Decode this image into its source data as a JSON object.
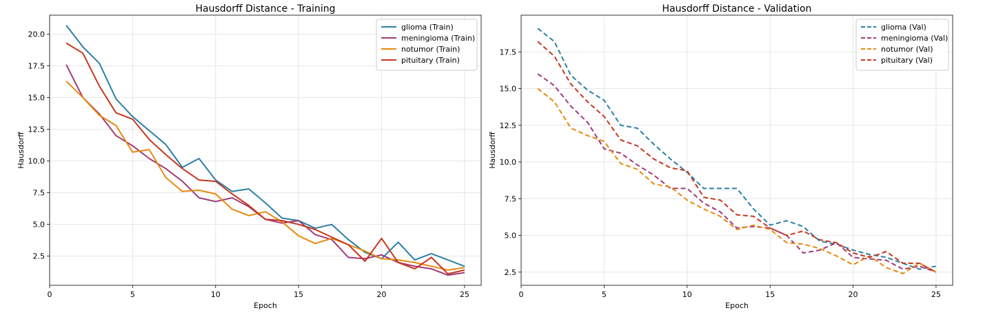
{
  "chart_data": [
    {
      "type": "line",
      "title": "Hausdorff Distance - Training",
      "xlabel": "Epoch",
      "ylabel": "Hausdorff",
      "xlim": [
        0,
        26
      ],
      "ylim": [
        0.2,
        21.5
      ],
      "xticks": [
        0,
        5,
        10,
        15,
        20,
        25
      ],
      "yticks": [
        2.5,
        5.0,
        7.5,
        10.0,
        12.5,
        15.0,
        17.5,
        20.0
      ],
      "ytick_labels": [
        "2.5",
        "5.0",
        "7.5",
        "10.0",
        "12.5",
        "15.0",
        "17.5",
        "20.0"
      ],
      "grid": true,
      "legend": "top-right",
      "x": [
        1,
        2,
        3,
        4,
        5,
        6,
        7,
        8,
        9,
        10,
        11,
        12,
        13,
        14,
        15,
        16,
        17,
        18,
        19,
        20,
        21,
        22,
        23,
        24,
        25
      ],
      "series": [
        {
          "name": "glioma (Train)",
          "color": "#2a7fa5",
          "dash": "solid",
          "values": [
            20.7,
            19.0,
            17.7,
            14.9,
            13.5,
            12.4,
            11.3,
            9.5,
            10.2,
            8.5,
            7.6,
            7.8,
            6.7,
            5.5,
            5.3,
            4.7,
            5.0,
            3.8,
            2.8,
            2.3,
            3.6,
            2.2,
            2.7,
            2.2,
            1.7
          ]
        },
        {
          "name": "meningioma (Train)",
          "color": "#a03a78",
          "dash": "solid",
          "values": [
            17.6,
            15.0,
            13.7,
            12.0,
            11.2,
            10.2,
            9.4,
            8.4,
            7.1,
            6.8,
            7.1,
            6.4,
            5.4,
            5.1,
            5.3,
            4.2,
            3.8,
            2.4,
            2.3,
            2.6,
            2.0,
            1.7,
            1.5,
            1.0,
            1.2
          ]
        },
        {
          "name": "notumor (Train)",
          "color": "#e8890c",
          "dash": "solid",
          "values": [
            16.3,
            15.0,
            13.6,
            12.8,
            10.7,
            10.9,
            8.7,
            7.6,
            7.7,
            7.4,
            6.2,
            5.7,
            6.0,
            5.2,
            4.1,
            3.5,
            3.9,
            3.4,
            2.9,
            2.3,
            2.2,
            2.0,
            1.7,
            1.4,
            1.6
          ]
        },
        {
          "name": "pituitary (Train)",
          "color": "#c7361e",
          "dash": "solid",
          "values": [
            19.3,
            18.5,
            15.9,
            13.8,
            13.3,
            11.7,
            10.5,
            9.4,
            8.5,
            8.4,
            7.4,
            6.5,
            5.4,
            5.3,
            5.0,
            4.6,
            4.0,
            3.4,
            2.1,
            3.9,
            2.0,
            1.5,
            2.4,
            1.1,
            1.4
          ]
        }
      ]
    },
    {
      "type": "line",
      "title": "Hausdorff Distance - Validation",
      "xlabel": "Epoch",
      "ylabel": "Hausdorff",
      "xlim": [
        0,
        26
      ],
      "ylim": [
        1.6,
        20.0
      ],
      "xticks": [
        0,
        5,
        10,
        15,
        20,
        25
      ],
      "yticks": [
        2.5,
        5.0,
        7.5,
        10.0,
        12.5,
        15.0,
        17.5
      ],
      "ytick_labels": [
        "2.5",
        "5.0",
        "7.5",
        "10.0",
        "12.5",
        "15.0",
        "17.5"
      ],
      "grid": true,
      "legend": "top-right",
      "x": [
        1,
        2,
        3,
        4,
        5,
        6,
        7,
        8,
        9,
        10,
        11,
        12,
        13,
        14,
        15,
        16,
        17,
        18,
        19,
        20,
        21,
        22,
        23,
        24,
        25
      ],
      "series": [
        {
          "name": "glioma (Val)",
          "color": "#2a7fa5",
          "dash": "dashed",
          "values": [
            19.1,
            18.2,
            15.9,
            14.9,
            14.2,
            12.5,
            12.3,
            11.2,
            10.2,
            9.3,
            8.2,
            8.2,
            8.2,
            6.8,
            5.7,
            6.0,
            5.6,
            4.6,
            4.4,
            4.0,
            3.7,
            3.5,
            3.1,
            2.7,
            2.9
          ]
        },
        {
          "name": "meningioma (Val)",
          "color": "#a03a78",
          "dash": "dashed",
          "values": [
            16.0,
            15.2,
            13.8,
            12.7,
            10.9,
            10.6,
            9.8,
            9.1,
            8.2,
            8.2,
            7.2,
            6.6,
            5.5,
            5.6,
            5.5,
            5.0,
            3.8,
            4.0,
            4.5,
            3.5,
            3.4,
            3.3,
            2.7,
            2.9,
            2.5
          ]
        },
        {
          "name": "notumor (Val)",
          "color": "#e8890c",
          "dash": "dashed",
          "values": [
            15.0,
            14.1,
            12.3,
            11.8,
            11.4,
            9.9,
            9.5,
            8.5,
            8.3,
            7.4,
            6.8,
            6.3,
            5.4,
            5.7,
            5.4,
            4.5,
            4.4,
            4.1,
            3.6,
            3.0,
            3.6,
            2.8,
            2.4,
            3.1,
            2.5
          ]
        },
        {
          "name": "pituitary (Val)",
          "color": "#c7361e",
          "dash": "dashed",
          "values": [
            18.2,
            17.2,
            15.3,
            14.1,
            13.1,
            11.5,
            11.1,
            10.2,
            9.6,
            9.4,
            7.6,
            7.4,
            6.4,
            6.3,
            5.5,
            5.0,
            5.3,
            4.7,
            4.5,
            3.8,
            3.5,
            3.9,
            3.1,
            3.1,
            2.5
          ]
        }
      ]
    }
  ]
}
